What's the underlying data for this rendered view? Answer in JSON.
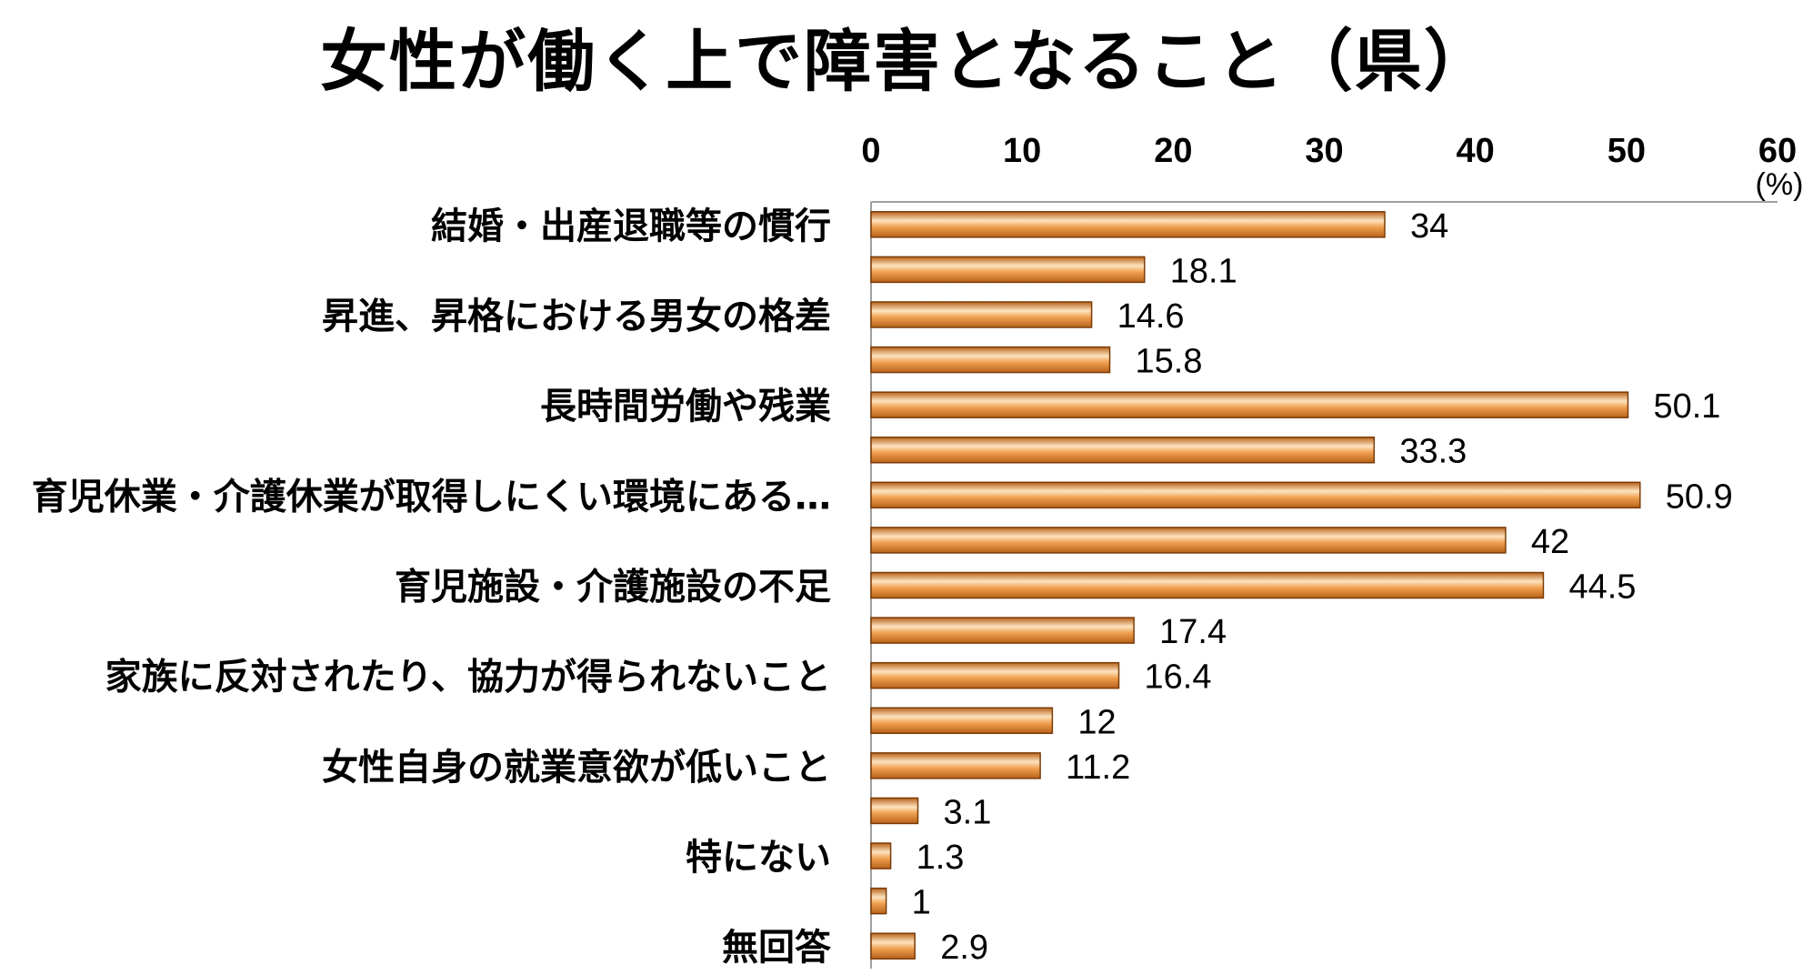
{
  "chart_data": {
    "type": "bar",
    "orientation": "horizontal",
    "title": "女性が働く上で障害となること（県）",
    "unit": "(%)",
    "xlim": [
      0,
      60
    ],
    "ticks": [
      0,
      10,
      20,
      30,
      40,
      50,
      60
    ],
    "tick_labels": [
      "0",
      "10",
      "20",
      "30",
      "40",
      "50",
      "60"
    ],
    "categories": [
      "結婚・出産退職等の慣行",
      "",
      "昇進、昇格における男女の格差",
      "",
      "長時間労働や残業",
      "",
      "育児休業・介護休業が取得しにくい環境にある…",
      "",
      "育児施設・介護施設の不足",
      "",
      "家族に反対されたり、協力が得られないこと",
      "",
      "女性自身の就業意欲が低いこと",
      "",
      "特にない",
      "",
      "無回答"
    ],
    "values": [
      34,
      18.1,
      14.6,
      15.8,
      50.1,
      33.3,
      50.9,
      42,
      44.5,
      17.4,
      16.4,
      12,
      11.2,
      3.1,
      1.3,
      1,
      2.9
    ],
    "value_labels": [
      "34",
      "18.1",
      "14.6",
      "15.8",
      "50.1",
      "33.3",
      "50.9",
      "42",
      "44.5",
      "17.4",
      "16.4",
      "12",
      "11.2",
      "3.1",
      "1.3",
      "1",
      "2.9"
    ],
    "data_labels": true,
    "grid": false,
    "legend": "none",
    "bar_colors": {
      "dark": "#b8621a",
      "mid": "#f0a050",
      "light": "#fde3bf",
      "edge": "#7a3c08"
    },
    "axis_color": "#a0a0a0"
  }
}
